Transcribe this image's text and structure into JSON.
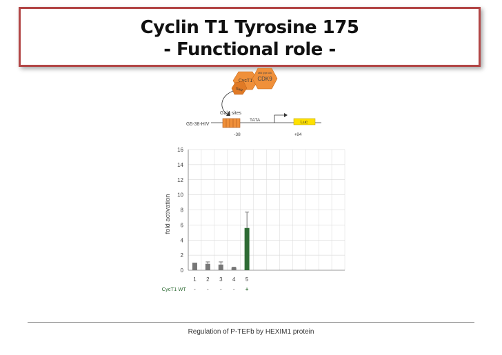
{
  "slide": {
    "title_line1": "Cyclin T1 Tyrosine 175",
    "title_line2": "- Functional role -",
    "footer": "Regulation of P-TEFb by HEXIM1 protein"
  },
  "diagram": {
    "cyct1_label": "CycT1",
    "cdk9_label": "CDK9",
    "cdk9_sublabel": "wild type cdk",
    "gal4db_label": "Gal4",
    "gal4_sites_label": "Gal4 sites",
    "construct_label": "G5-38-HIV",
    "tata_label": "TATA",
    "luc_label": "Luc",
    "pos_left": "-38",
    "pos_right": "+84"
  },
  "colors": {
    "orange": "#f0903a",
    "gray_bar": "#777777",
    "green_bar": "#2e6b34",
    "title_border": "#b24545"
  },
  "chart_data": {
    "type": "bar",
    "categories": [
      "1",
      "2",
      "3",
      "4",
      "5"
    ],
    "values": [
      1.0,
      0.85,
      0.75,
      0.35,
      5.6
    ],
    "errors": [
      0.0,
      0.25,
      0.35,
      0.05,
      2.1
    ],
    "bar_colors": [
      "#777777",
      "#777777",
      "#777777",
      "#777777",
      "#2e6b34"
    ],
    "ylabel": "fold activation",
    "ylim": [
      0,
      16
    ],
    "yticks": [
      0,
      2,
      4,
      6,
      8,
      10,
      12,
      14,
      16
    ],
    "row_label": "CycT1 WT",
    "row_values": [
      "-",
      "-",
      "-",
      "-",
      "+"
    ],
    "grid": true
  }
}
